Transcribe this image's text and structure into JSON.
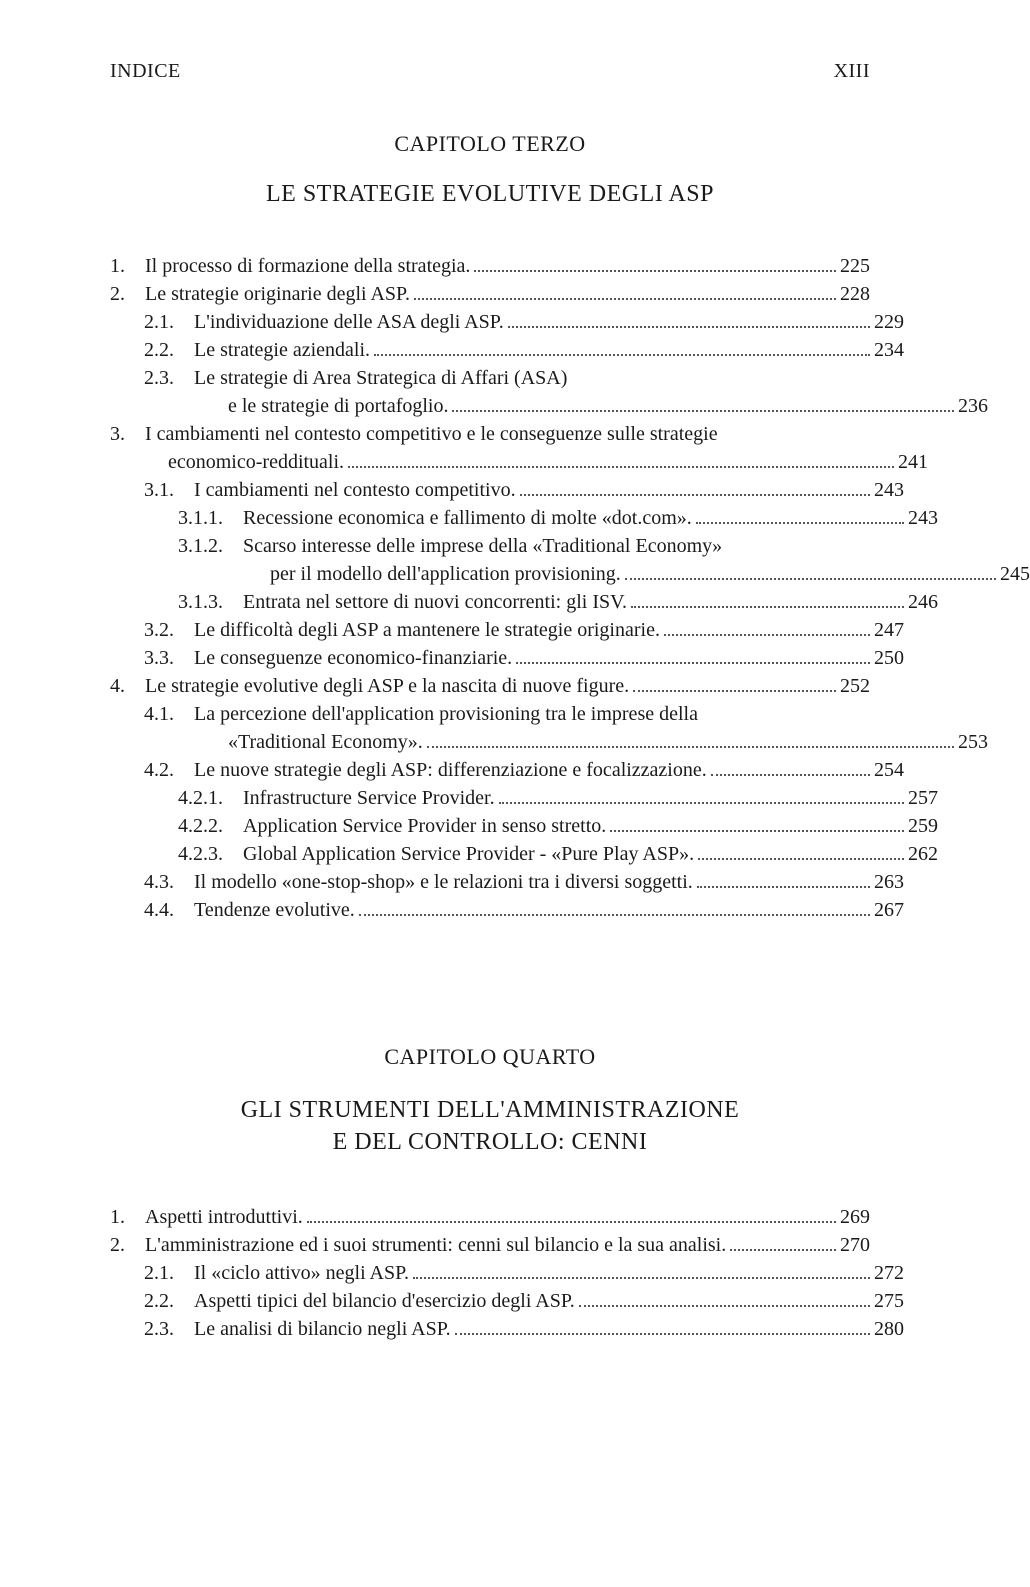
{
  "running_header": {
    "left": "INDICE",
    "right": "XIII"
  },
  "chapter3": {
    "label": "CAPITOLO TERZO",
    "title": "LE STRATEGIE EVOLUTIVE DEGLI ASP"
  },
  "chapter4": {
    "label": "CAPITOLO QUARTO",
    "title_line1": "GLI STRUMENTI DELL'AMMINISTRAZIONE",
    "title_line2": "E DEL CONTROLLO: CENNI"
  },
  "toc3": [
    {
      "indent": 0,
      "num": "1.",
      "text": "Il processo di formazione della strategia.",
      "page": "225"
    },
    {
      "indent": 0,
      "num": "2.",
      "text": "Le strategie originarie degli ASP.",
      "page": "228"
    },
    {
      "indent": 1,
      "num": "2.1.",
      "text": "L'individuazione delle ASA degli ASP.",
      "page": "229"
    },
    {
      "indent": 1,
      "num": "2.2.",
      "text": "Le strategie aziendali.",
      "page": "234"
    },
    {
      "indent": 1,
      "num": "2.3.",
      "text": "Le strategie di Area Strategica di Affari (ASA)",
      "cont": "e le strategie di portafoglio.",
      "page": "236"
    },
    {
      "indent": 0,
      "num": "3.",
      "text": "I cambiamenti nel contesto competitivo e le conseguenze sulle strategie",
      "cont": "economico-reddituali.",
      "page": "241"
    },
    {
      "indent": 1,
      "num": "3.1.",
      "text": "I cambiamenti nel contesto competitivo.",
      "page": "243"
    },
    {
      "indent": 2,
      "num": "3.1.1.",
      "text": "Recessione economica e fallimento di molte «dot.com».",
      "page": "243"
    },
    {
      "indent": 2,
      "num": "3.1.2.",
      "text": "Scarso interesse delle imprese della «Traditional Economy»",
      "cont": "per il modello dell'application provisioning.",
      "page": "245"
    },
    {
      "indent": 2,
      "num": "3.1.3.",
      "text": "Entrata nel settore di nuovi concorrenti: gli ISV.",
      "page": "246"
    },
    {
      "indent": 1,
      "num": "3.2.",
      "text": "Le difficoltà degli ASP a mantenere le strategie originarie.",
      "page": "247"
    },
    {
      "indent": 1,
      "num": "3.3.",
      "text": "Le conseguenze economico-finanziarie.",
      "page": "250"
    },
    {
      "indent": 0,
      "num": "4.",
      "text": "Le strategie evolutive degli ASP e la nascita di nuove figure.",
      "page": "252"
    },
    {
      "indent": 1,
      "num": "4.1.",
      "text": "La percezione dell'application provisioning tra le imprese della",
      "cont": "«Traditional Economy».",
      "page": "253"
    },
    {
      "indent": 1,
      "num": "4.2.",
      "text": "Le nuove strategie degli ASP: differenziazione e focalizzazione.",
      "page": "254"
    },
    {
      "indent": 2,
      "num": "4.2.1.",
      "text": "Infrastructure Service Provider.",
      "page": "257"
    },
    {
      "indent": 2,
      "num": "4.2.2.",
      "text": "Application Service Provider in senso stretto.",
      "page": "259"
    },
    {
      "indent": 2,
      "num": "4.2.3.",
      "text": "Global Application Service Provider - «Pure Play ASP».",
      "page": "262"
    },
    {
      "indent": 1,
      "num": "4.3.",
      "text": "Il modello «one-stop-shop» e le relazioni tra i diversi soggetti.",
      "page": "263"
    },
    {
      "indent": 1,
      "num": "4.4.",
      "text": "Tendenze evolutive.",
      "page": "267"
    }
  ],
  "toc4": [
    {
      "indent": 0,
      "num": "1.",
      "text": "Aspetti introduttivi.",
      "page": "269"
    },
    {
      "indent": 0,
      "num": "2.",
      "text": "L'amministrazione ed i suoi strumenti: cenni sul bilancio e la sua analisi.",
      "page": "270"
    },
    {
      "indent": 1,
      "num": "2.1.",
      "text": "Il «ciclo attivo» negli ASP.",
      "page": "272"
    },
    {
      "indent": 1,
      "num": "2.2.",
      "text": "Aspetti tipici del bilancio d'esercizio degli ASP.",
      "page": "275"
    },
    {
      "indent": 1,
      "num": "2.3.",
      "text": "Le analisi di bilancio negli ASP.",
      "page": "280"
    }
  ]
}
